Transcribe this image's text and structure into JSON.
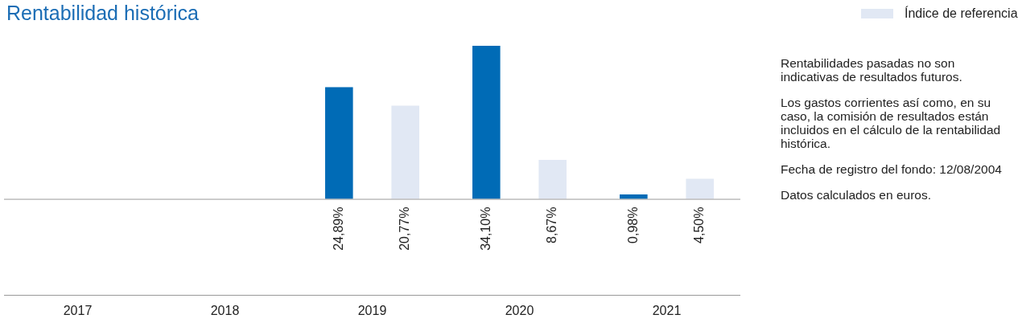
{
  "chart_data": {
    "type": "bar",
    "title": "Rentabilidad histórica",
    "categories": [
      "2017",
      "2018",
      "2019",
      "2020",
      "2021"
    ],
    "series": [
      {
        "color": "#006bb6",
        "values": [
          null,
          null,
          24.89,
          34.1,
          0.98
        ],
        "value_labels": [
          null,
          null,
          "24,89%",
          "34,10%",
          "0,98%"
        ]
      },
      {
        "name": "Índice de referencia",
        "color": "#e1e8f4",
        "values": [
          null,
          null,
          20.77,
          8.67,
          4.5
        ],
        "value_labels": [
          null,
          null,
          "20,77%",
          "8,67%",
          "4,50%"
        ]
      }
    ],
    "legend": "top right",
    "grid": false,
    "annotations": [
      "Rentabilidades pasadas no son indicativas de resultados futuros.",
      "Los gastos corrientes así como, en su caso, la comisión de resultados están incluidos en el cálculo de la rentabilidad histórica.",
      "Fecha de registro del fondo: 12/08/2004",
      "Datos calculados en euros."
    ]
  }
}
